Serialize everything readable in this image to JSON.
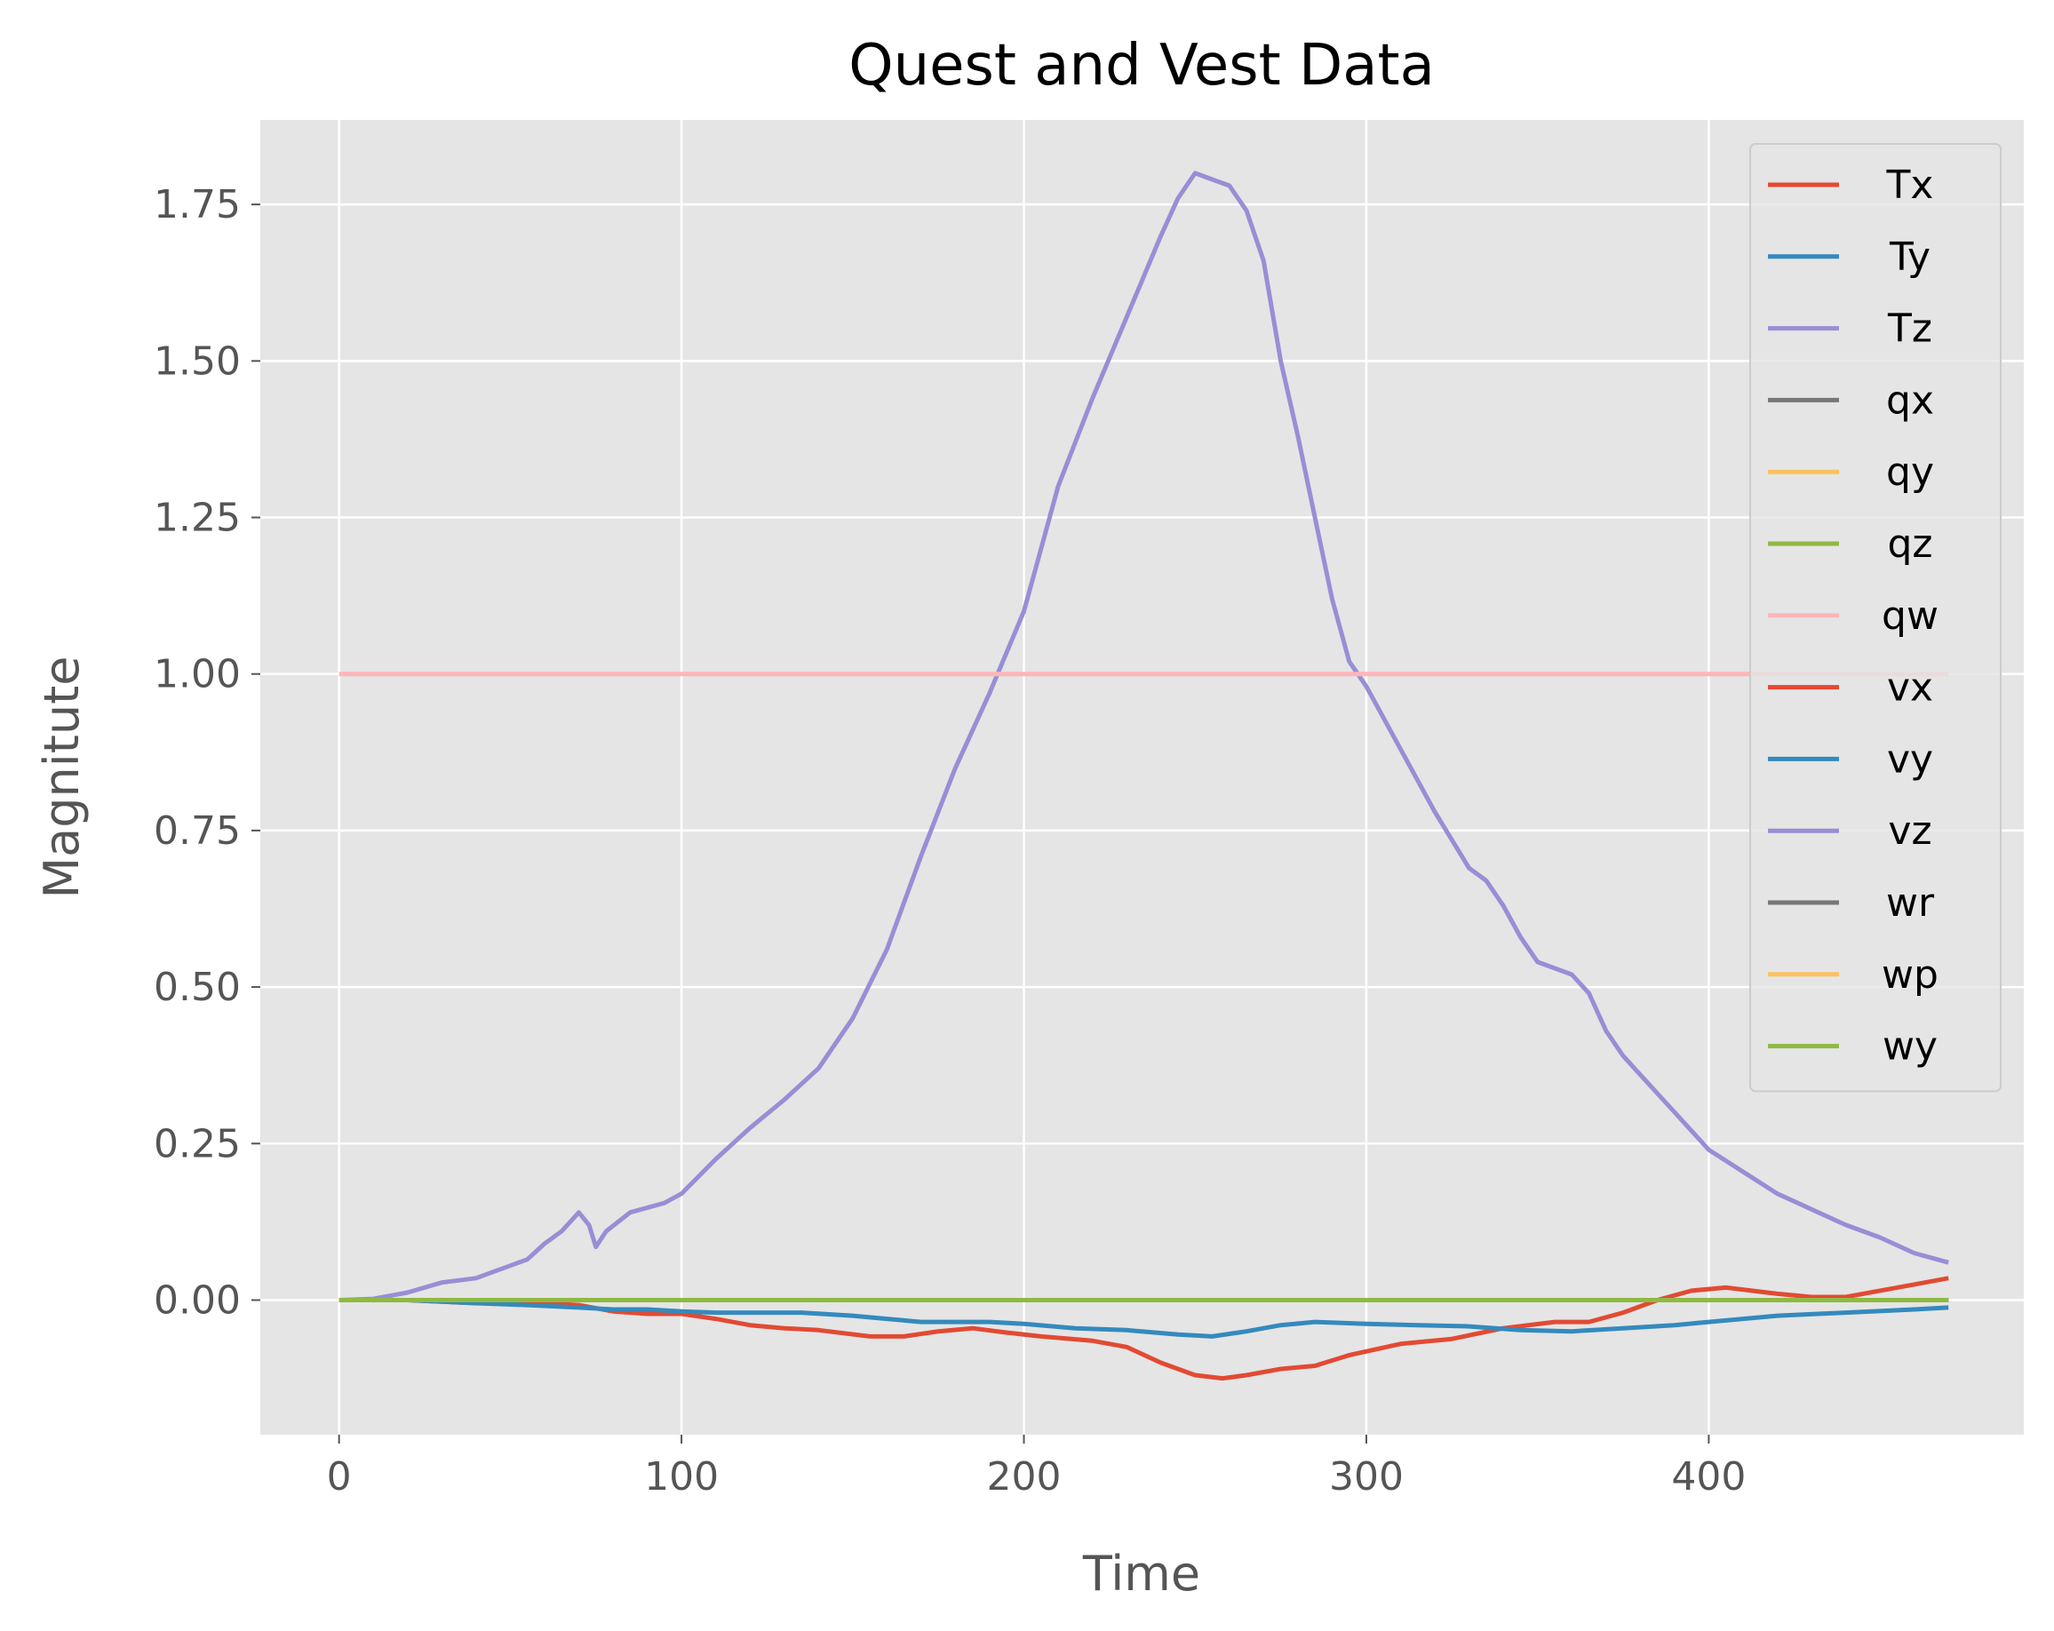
{
  "chart_data": {
    "type": "line",
    "title": "Quest and Vest Data",
    "xlabel": "Time",
    "ylabel": "Magnitute",
    "xlim": [
      -23,
      492
    ],
    "ylim": [
      -0.215,
      1.885
    ],
    "xticks": [
      0,
      100,
      200,
      300,
      400
    ],
    "xtick_labels": [
      "0",
      "100",
      "200",
      "300",
      "400"
    ],
    "yticks": [
      0.0,
      0.25,
      0.5,
      0.75,
      1.0,
      1.25,
      1.5,
      1.75
    ],
    "ytick_labels": [
      "0.00",
      "0.25",
      "0.50",
      "0.75",
      "1.00",
      "1.25",
      "1.50",
      "1.75"
    ],
    "grid": true,
    "legend_position": "upper-right",
    "background_color": "#e5e5e5",
    "series": [
      {
        "name": "Tx",
        "color": "#e24a33",
        "x": [
          0,
          20,
          40,
          60,
          70,
          80,
          90,
          100,
          110,
          120,
          130,
          140,
          155,
          165,
          175,
          185,
          195,
          205,
          220,
          230,
          240,
          250,
          258,
          265,
          275,
          285,
          295,
          310,
          325,
          340,
          355,
          365,
          375,
          385,
          395,
          405,
          420,
          430,
          440,
          450,
          460,
          470
        ],
        "y": [
          0,
          0,
          -0.005,
          -0.005,
          -0.008,
          -0.018,
          -0.022,
          -0.022,
          -0.03,
          -0.04,
          -0.045,
          -0.048,
          -0.058,
          -0.058,
          -0.05,
          -0.045,
          -0.052,
          -0.058,
          -0.065,
          -0.075,
          -0.1,
          -0.12,
          -0.125,
          -0.12,
          -0.11,
          -0.105,
          -0.088,
          -0.07,
          -0.062,
          -0.045,
          -0.035,
          -0.035,
          -0.02,
          0.0,
          0.015,
          0.02,
          0.01,
          0.005,
          0.005,
          0.015,
          0.025,
          0.035
        ]
      },
      {
        "name": "Ty",
        "color": "#348abd",
        "x": [
          0,
          20,
          40,
          55,
          70,
          80,
          90,
          100,
          110,
          120,
          135,
          150,
          160,
          170,
          180,
          190,
          200,
          215,
          230,
          245,
          255,
          265,
          275,
          285,
          300,
          315,
          330,
          345,
          360,
          375,
          390,
          400,
          420,
          440,
          460,
          470
        ],
        "y": [
          0,
          0,
          -0.005,
          -0.008,
          -0.012,
          -0.015,
          -0.015,
          -0.018,
          -0.02,
          -0.02,
          -0.02,
          -0.025,
          -0.03,
          -0.035,
          -0.035,
          -0.035,
          -0.038,
          -0.045,
          -0.048,
          -0.055,
          -0.058,
          -0.05,
          -0.04,
          -0.035,
          -0.038,
          -0.04,
          -0.042,
          -0.048,
          -0.05,
          -0.045,
          -0.04,
          -0.035,
          -0.025,
          -0.02,
          -0.015,
          -0.012
        ]
      },
      {
        "name": "Tz",
        "color": "#988ed5",
        "x": [
          0,
          10,
          20,
          30,
          40,
          50,
          55,
          60,
          65,
          70,
          73,
          75,
          78,
          85,
          95,
          100,
          110,
          120,
          130,
          140,
          150,
          160,
          170,
          180,
          190,
          200,
          210,
          220,
          230,
          240,
          245,
          250,
          255,
          260,
          265,
          270,
          275,
          280,
          285,
          290,
          295,
          300,
          310,
          320,
          330,
          335,
          340,
          345,
          350,
          360,
          365,
          370,
          375,
          380,
          390,
          400,
          410,
          420,
          430,
          440,
          450,
          460,
          470
        ],
        "y": [
          0,
          0.002,
          0.012,
          0.028,
          0.035,
          0.055,
          0.065,
          0.09,
          0.11,
          0.14,
          0.12,
          0.085,
          0.11,
          0.14,
          0.155,
          0.17,
          0.225,
          0.275,
          0.32,
          0.37,
          0.45,
          0.56,
          0.71,
          0.85,
          0.97,
          1.1,
          1.3,
          1.44,
          1.57,
          1.7,
          1.76,
          1.8,
          1.79,
          1.78,
          1.74,
          1.66,
          1.5,
          1.38,
          1.25,
          1.12,
          1.02,
          0.98,
          0.88,
          0.78,
          0.69,
          0.67,
          0.63,
          0.58,
          0.54,
          0.52,
          0.49,
          0.43,
          0.39,
          0.36,
          0.3,
          0.24,
          0.205,
          0.17,
          0.145,
          0.12,
          0.1,
          0.075,
          0.06
        ]
      },
      {
        "name": "qx",
        "color": "#777777",
        "x": [
          0,
          470
        ],
        "y": [
          0.0,
          0.0
        ]
      },
      {
        "name": "qy",
        "color": "#fbc15e",
        "x": [
          0,
          470
        ],
        "y": [
          0.0,
          0.0
        ]
      },
      {
        "name": "qz",
        "color": "#8eba42",
        "x": [
          0,
          470
        ],
        "y": [
          0.0,
          0.0
        ]
      },
      {
        "name": "qw",
        "color": "#ffb5b8",
        "x": [
          0,
          470
        ],
        "y": [
          1.0,
          1.0
        ]
      },
      {
        "name": "vx",
        "color": "#e24a33",
        "x": [
          0,
          470
        ],
        "y": [
          0.0,
          0.0
        ]
      },
      {
        "name": "vy",
        "color": "#348abd",
        "x": [
          0,
          470
        ],
        "y": [
          0.0,
          0.0
        ]
      },
      {
        "name": "vz",
        "color": "#988ed5",
        "x": [
          0,
          470
        ],
        "y": [
          0.0,
          0.0
        ]
      },
      {
        "name": "wr",
        "color": "#777777",
        "x": [
          0,
          470
        ],
        "y": [
          0.0,
          0.0
        ]
      },
      {
        "name": "wp",
        "color": "#fbc15e",
        "x": [
          0,
          470
        ],
        "y": [
          0.0,
          0.0
        ]
      },
      {
        "name": "wy",
        "color": "#8eba42",
        "x": [
          0,
          470
        ],
        "y": [
          0.0,
          0.0
        ]
      }
    ]
  }
}
